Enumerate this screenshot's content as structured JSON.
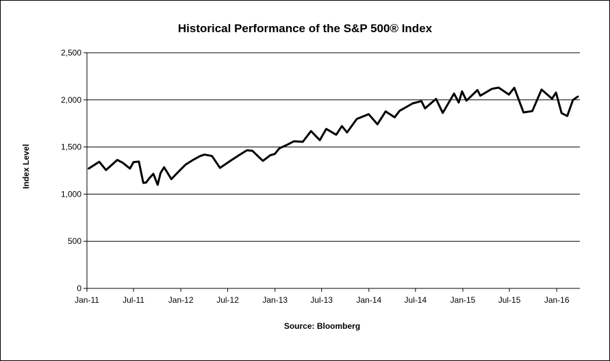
{
  "chart_data": {
    "type": "line",
    "title": "Historical Performance of the S&P 500® Index",
    "xlabel": "Source: Bloomberg",
    "ylabel": "Index Level",
    "ylim": [
      0,
      2500
    ],
    "yticks": [
      0,
      500,
      1000,
      1500,
      2000,
      2500
    ],
    "ytick_labels": [
      "0",
      "500",
      "1,000",
      "1,500",
      "2,000",
      "2,500"
    ],
    "xlim": [
      "2011-01-01",
      "2016-03-31"
    ],
    "xtick_labels": [
      "Jan-11",
      "Jul-11",
      "Jan-12",
      "Jul-12",
      "Jan-13",
      "Jul-13",
      "Jan-14",
      "Jul-14",
      "Jan-15",
      "Jul-15",
      "Jan-16"
    ],
    "xtick_dates": [
      "2011-01-01",
      "2011-07-01",
      "2012-01-01",
      "2012-07-01",
      "2013-01-01",
      "2013-07-01",
      "2014-01-01",
      "2014-07-01",
      "2015-01-01",
      "2015-07-01",
      "2016-01-01"
    ],
    "grid": true,
    "line_color": "#000000",
    "series": [
      {
        "x": [
          "2011-01-07",
          "2011-02-18",
          "2011-03-16",
          "2011-04-29",
          "2011-05-20",
          "2011-06-17",
          "2011-07-01",
          "2011-07-22",
          "2011-08-08",
          "2011-08-19",
          "2011-09-02",
          "2011-09-16",
          "2011-10-03",
          "2011-10-14",
          "2011-10-28",
          "2011-11-25",
          "2011-12-16",
          "2011-12-30",
          "2012-01-20",
          "2012-02-17",
          "2012-03-16",
          "2012-04-02",
          "2012-05-01",
          "2012-06-01",
          "2012-07-13",
          "2012-08-17",
          "2012-09-14",
          "2012-10-05",
          "2012-11-15",
          "2012-12-14",
          "2012-12-31",
          "2013-01-18",
          "2013-02-15",
          "2013-03-15",
          "2013-04-19",
          "2013-05-21",
          "2013-06-24",
          "2013-07-19",
          "2013-08-27",
          "2013-09-18",
          "2013-10-08",
          "2013-11-15",
          "2013-12-31",
          "2014-02-03",
          "2014-03-07",
          "2014-04-11",
          "2014-04-30",
          "2014-06-20",
          "2014-07-24",
          "2014-08-07",
          "2014-09-19",
          "2014-10-15",
          "2014-11-28",
          "2014-12-16",
          "2014-12-29",
          "2015-01-15",
          "2015-02-27",
          "2015-03-10",
          "2015-04-24",
          "2015-05-20",
          "2015-06-29",
          "2015-07-20",
          "2015-08-25",
          "2015-09-28",
          "2015-11-03",
          "2015-12-14",
          "2015-12-29",
          "2016-01-20",
          "2016-02-11",
          "2016-03-04",
          "2016-03-24"
        ],
        "y": [
          1270,
          1343,
          1256,
          1363,
          1333,
          1271,
          1340,
          1345,
          1119,
          1123,
          1174,
          1216,
          1099,
          1224,
          1285,
          1159,
          1219,
          1258,
          1315,
          1362,
          1404,
          1419,
          1405,
          1278,
          1356,
          1418,
          1465,
          1460,
          1353,
          1413,
          1426,
          1486,
          1520,
          1560,
          1555,
          1669,
          1573,
          1692,
          1630,
          1722,
          1655,
          1798,
          1848,
          1741,
          1878,
          1815,
          1884,
          1962,
          1987,
          1910,
          2010,
          1862,
          2067,
          1972,
          2090,
          1992,
          2104,
          2044,
          2117,
          2130,
          2057,
          2128,
          1867,
          1881,
          2109,
          2012,
          2078,
          1859,
          1829,
          1999,
          2036
        ]
      }
    ]
  }
}
